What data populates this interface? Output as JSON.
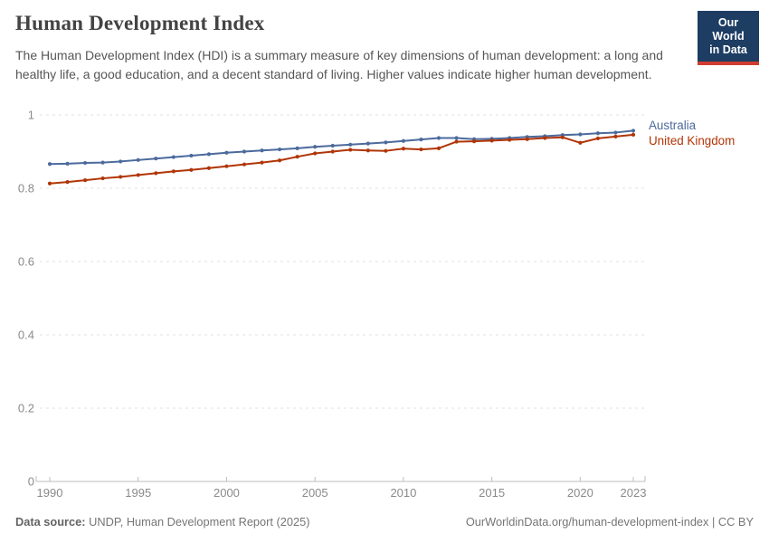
{
  "header": {
    "title": "Human Development Index",
    "subtitle": "The Human Development Index (HDI) is a summary measure of key dimensions of human development: a long and healthy life, a good education, and a decent standard of living. Higher values indicate higher human development."
  },
  "logo": {
    "line1": "Our World",
    "line2": "in Data",
    "bg_color": "#1d3d63",
    "accent_color": "#cf3d32"
  },
  "chart_data": {
    "type": "line",
    "title": "Human Development Index",
    "xlabel": "",
    "ylabel": "",
    "x": [
      1990,
      1991,
      1992,
      1993,
      1994,
      1995,
      1996,
      1997,
      1998,
      1999,
      2000,
      2001,
      2002,
      2003,
      2004,
      2005,
      2006,
      2007,
      2008,
      2009,
      2010,
      2011,
      2012,
      2013,
      2014,
      2015,
      2016,
      2017,
      2018,
      2019,
      2020,
      2021,
      2022,
      2023
    ],
    "series": [
      {
        "name": "Australia",
        "color": "#4C6A9C",
        "values": [
          0.866,
          0.867,
          0.869,
          0.87,
          0.873,
          0.877,
          0.881,
          0.885,
          0.889,
          0.893,
          0.897,
          0.9,
          0.903,
          0.906,
          0.909,
          0.913,
          0.916,
          0.919,
          0.922,
          0.925,
          0.929,
          0.933,
          0.937,
          0.937,
          0.934,
          0.935,
          0.937,
          0.94,
          0.942,
          0.945,
          0.947,
          0.95,
          0.952,
          0.957
        ]
      },
      {
        "name": "United Kingdom",
        "color": "#B13507",
        "values": [
          0.813,
          0.817,
          0.822,
          0.827,
          0.831,
          0.836,
          0.841,
          0.846,
          0.85,
          0.855,
          0.86,
          0.865,
          0.87,
          0.876,
          0.886,
          0.895,
          0.9,
          0.905,
          0.903,
          0.902,
          0.908,
          0.906,
          0.909,
          0.927,
          0.928,
          0.93,
          0.932,
          0.934,
          0.937,
          0.939,
          0.924,
          0.936,
          0.941,
          0.946
        ]
      }
    ],
    "ylim": [
      0,
      1
    ],
    "yticks": [
      0,
      0.2,
      0.4,
      0.6,
      0.8,
      1
    ],
    "xticks": [
      1990,
      1995,
      2000,
      2005,
      2010,
      2015,
      2020,
      2023
    ],
    "grid": "horizontal-dashed",
    "legend_position": "right-of-line-ends",
    "marker": "point-per-year"
  },
  "footer": {
    "datasource_label": "Data source:",
    "datasource_text": "UNDP, Human Development Report (2025)",
    "credit": "OurWorldinData.org/human-development-index | CC BY"
  }
}
